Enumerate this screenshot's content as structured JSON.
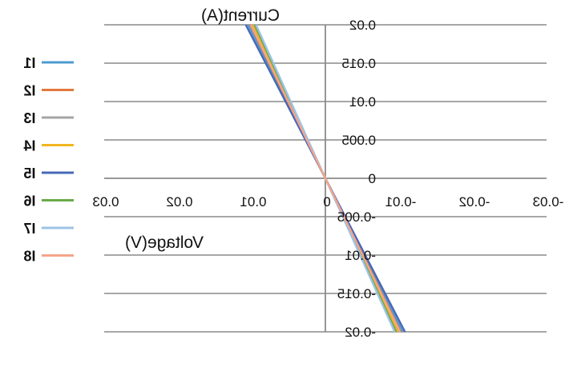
{
  "chart_data": {
    "type": "line",
    "mirrored": true,
    "xlabel": "Voltage(V)",
    "ylabel": "Current(A)",
    "xlim": [
      -0.03,
      0.03
    ],
    "ylim": [
      -0.02,
      0.02
    ],
    "x_ticks": [
      -0.03,
      -0.02,
      -0.01,
      0,
      0.01,
      0.02,
      0.03
    ],
    "x_tick_labels": [
      "-0.03",
      "-0.02",
      "-0.01",
      "0",
      "0.01",
      "0.02",
      "0.03"
    ],
    "y_ticks": [
      -0.02,
      -0.015,
      -0.01,
      -0.005,
      0,
      0.005,
      0.01,
      0.015,
      0.02
    ],
    "y_tick_labels": [
      "-0.02",
      "-0.015",
      "-0.01",
      "-0.005",
      "0",
      "0.005",
      "0.01",
      "0.015",
      "0.02"
    ],
    "grid": "horizontal",
    "legend_position": "left",
    "series": [
      {
        "name": "I1",
        "color": "#4e9bd0",
        "x": [
          -0.0105,
          0.0105
        ],
        "y": [
          -0.02,
          0.02
        ]
      },
      {
        "name": "I2",
        "color": "#e2773c",
        "x": [
          -0.0102,
          0.0102
        ],
        "y": [
          -0.02,
          0.02
        ]
      },
      {
        "name": "I3",
        "color": "#a5a5a5",
        "x": [
          -0.01,
          0.01
        ],
        "y": [
          -0.02,
          0.02
        ]
      },
      {
        "name": "I4",
        "color": "#f2b51e",
        "x": [
          -0.0098,
          0.0098
        ],
        "y": [
          -0.02,
          0.02
        ]
      },
      {
        "name": "I5",
        "color": "#4868b8",
        "x": [
          -0.0108,
          0.0108
        ],
        "y": [
          -0.02,
          0.02
        ]
      },
      {
        "name": "I6",
        "color": "#6aaa48",
        "x": [
          -0.0096,
          0.0096
        ],
        "y": [
          -0.02,
          0.02
        ]
      },
      {
        "name": "I7",
        "color": "#9dc3e6",
        "x": [
          -0.0094,
          0.0094
        ],
        "y": [
          -0.02,
          0.02
        ]
      },
      {
        "name": "I8",
        "color": "#f4a58a",
        "x": [
          -0.0101,
          0.0101
        ],
        "y": [
          -0.02,
          0.02
        ]
      }
    ]
  }
}
